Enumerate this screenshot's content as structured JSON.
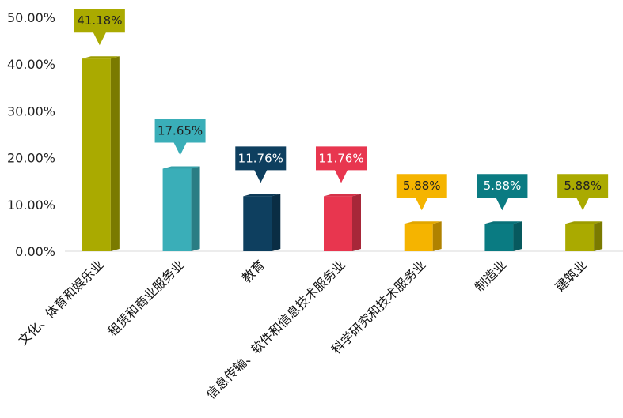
{
  "chart_data": {
    "type": "bar",
    "categories": [
      "文化、体育和娱乐业",
      "租赁和商业服务业",
      "教育",
      "信息传输、软件和信息技术服务业",
      "科学研究和技术服务业",
      "制造业",
      "建筑业"
    ],
    "values": [
      41.18,
      17.65,
      11.76,
      11.76,
      5.88,
      5.88,
      5.88
    ],
    "data_labels": [
      "41.18%",
      "17.65%",
      "11.76%",
      "11.76%",
      "5.88%",
      "5.88%",
      "5.88%"
    ],
    "yticks": [
      "0.00%",
      "10.00%",
      "20.00%",
      "30.00%",
      "40.00%",
      "50.00%"
    ],
    "ylim": [
      0,
      50
    ],
    "grid": false,
    "legend": "none",
    "colors": [
      "#aaaa00",
      "#3aaeb8",
      "#0e3f5f",
      "#e8364f",
      "#f5b400",
      "#0a7b82",
      "#aaaa00"
    ],
    "label_text_colors": [
      "#222222",
      "#222222",
      "#ffffff",
      "#ffffff",
      "#222222",
      "#ffffff",
      "#222222"
    ],
    "title": "",
    "xlabel": "",
    "ylabel": ""
  }
}
